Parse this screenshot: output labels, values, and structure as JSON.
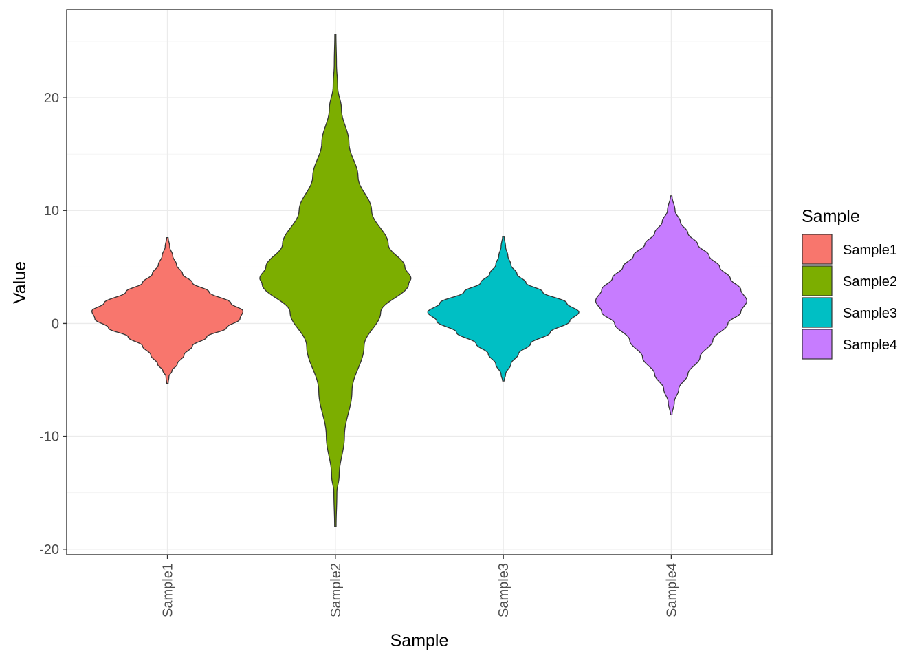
{
  "chart_data": {
    "type": "violin",
    "title": "",
    "xlabel": "Sample",
    "ylabel": "Value",
    "ylim": [
      -20.5,
      27.8
    ],
    "yticks": [
      -20,
      -10,
      0,
      10,
      20
    ],
    "ytick_labels": [
      "-20",
      "-10",
      "0",
      "10",
      "20"
    ],
    "categories": [
      "Sample1",
      "Sample2",
      "Sample3",
      "Sample4"
    ],
    "legend": {
      "title": "Sample",
      "position": "right",
      "entries": [
        "Sample1",
        "Sample2",
        "Sample3",
        "Sample4"
      ]
    },
    "grid": true,
    "series": [
      {
        "name": "Sample1",
        "color": "#F8766D",
        "min": -5.3,
        "max": 7.6,
        "profile": [
          [
            -5.3,
            0.01
          ],
          [
            -4.7,
            0.02
          ],
          [
            -4.2,
            0.06
          ],
          [
            -3.6,
            0.13
          ],
          [
            -2.8,
            0.22
          ],
          [
            -2.0,
            0.33
          ],
          [
            -1.2,
            0.52
          ],
          [
            -0.4,
            0.78
          ],
          [
            0.4,
            0.96
          ],
          [
            1.1,
            1.0
          ],
          [
            1.8,
            0.84
          ],
          [
            2.8,
            0.55
          ],
          [
            3.6,
            0.33
          ],
          [
            4.4,
            0.2
          ],
          [
            5.2,
            0.12
          ],
          [
            6.0,
            0.07
          ],
          [
            6.8,
            0.03
          ],
          [
            7.6,
            0.01
          ]
        ]
      },
      {
        "name": "Sample2",
        "color": "#7CAE00",
        "min": -18.0,
        "max": 25.6,
        "profile": [
          [
            -18.0,
            0.01
          ],
          [
            -15.0,
            0.02
          ],
          [
            -13.5,
            0.05
          ],
          [
            -10.0,
            0.12
          ],
          [
            -6.0,
            0.22
          ],
          [
            -2.0,
            0.38
          ],
          [
            1.0,
            0.6
          ],
          [
            3.5,
            0.97
          ],
          [
            4.0,
            1.0
          ],
          [
            5.0,
            0.92
          ],
          [
            7.0,
            0.7
          ],
          [
            10.0,
            0.48
          ],
          [
            13.0,
            0.3
          ],
          [
            16.0,
            0.18
          ],
          [
            19.0,
            0.08
          ],
          [
            21.0,
            0.03
          ],
          [
            23.0,
            0.015
          ],
          [
            25.6,
            0.008
          ]
        ]
      },
      {
        "name": "Sample3",
        "color": "#00BFC4",
        "min": -5.1,
        "max": 7.7,
        "profile": [
          [
            -5.1,
            0.01
          ],
          [
            -4.5,
            0.03
          ],
          [
            -3.6,
            0.1
          ],
          [
            -2.7,
            0.2
          ],
          [
            -1.8,
            0.36
          ],
          [
            -0.8,
            0.62
          ],
          [
            0.2,
            0.88
          ],
          [
            1.0,
            1.0
          ],
          [
            1.8,
            0.84
          ],
          [
            2.8,
            0.52
          ],
          [
            3.6,
            0.3
          ],
          [
            4.4,
            0.18
          ],
          [
            5.2,
            0.1
          ],
          [
            6.0,
            0.06
          ],
          [
            6.8,
            0.03
          ],
          [
            7.7,
            0.01
          ]
        ]
      },
      {
        "name": "Sample4",
        "color": "#C77CFF",
        "min": -8.1,
        "max": 11.3,
        "profile": [
          [
            -8.1,
            0.01
          ],
          [
            -7.0,
            0.04
          ],
          [
            -5.8,
            0.1
          ],
          [
            -4.5,
            0.22
          ],
          [
            -3.0,
            0.38
          ],
          [
            -1.5,
            0.55
          ],
          [
            0.0,
            0.75
          ],
          [
            1.0,
            0.92
          ],
          [
            2.0,
            1.0
          ],
          [
            3.0,
            0.92
          ],
          [
            4.0,
            0.78
          ],
          [
            5.0,
            0.64
          ],
          [
            6.0,
            0.5
          ],
          [
            7.0,
            0.35
          ],
          [
            8.0,
            0.22
          ],
          [
            9.0,
            0.12
          ],
          [
            10.0,
            0.05
          ],
          [
            11.3,
            0.01
          ]
        ]
      }
    ]
  }
}
